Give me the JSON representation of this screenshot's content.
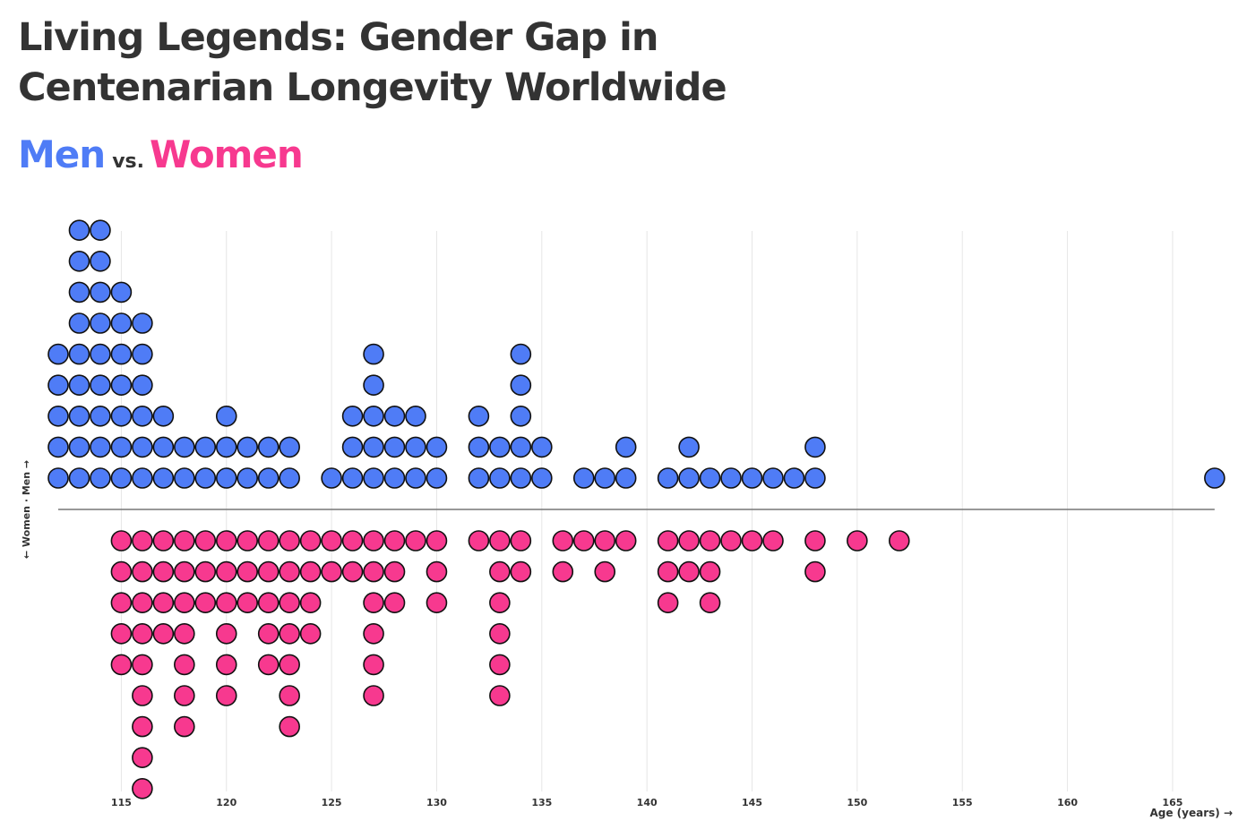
{
  "chart_data": {
    "type": "dot",
    "title": "Living Legends: Gender Gap in Centenarian Longevity Worldwide",
    "subtitle": {
      "left": "Men",
      "middle": "vs.",
      "right": "Women"
    },
    "xlabel": "Age (years) →",
    "ylabel": "← Women · Men →",
    "xlim": [
      112,
      167
    ],
    "xticks": [
      115,
      120,
      125,
      130,
      135,
      140,
      145,
      150,
      155,
      160,
      165
    ],
    "colors": {
      "men": "#4f7cf6",
      "women": "#f7398f",
      "outline": "#111111",
      "axis": "#777777",
      "grid": "#e6e6e6",
      "text": "#333333"
    },
    "series": [
      {
        "name": "Men",
        "direction": "up",
        "points": [
          {
            "age": 112,
            "count": 5
          },
          {
            "age": 113,
            "count": 9
          },
          {
            "age": 114,
            "count": 9
          },
          {
            "age": 115,
            "count": 7
          },
          {
            "age": 116,
            "count": 6
          },
          {
            "age": 117,
            "count": 3
          },
          {
            "age": 118,
            "count": 2
          },
          {
            "age": 119,
            "count": 2
          },
          {
            "age": 120,
            "count": 3
          },
          {
            "age": 121,
            "count": 2
          },
          {
            "age": 122,
            "count": 2
          },
          {
            "age": 123,
            "count": 2
          },
          {
            "age": 125,
            "count": 1
          },
          {
            "age": 126,
            "count": 3
          },
          {
            "age": 127,
            "count": 5
          },
          {
            "age": 128,
            "count": 3
          },
          {
            "age": 129,
            "count": 3
          },
          {
            "age": 130,
            "count": 2
          },
          {
            "age": 132,
            "count": 3
          },
          {
            "age": 133,
            "count": 2
          },
          {
            "age": 134,
            "count": 5
          },
          {
            "age": 135,
            "count": 2
          },
          {
            "age": 137,
            "count": 1
          },
          {
            "age": 138,
            "count": 1
          },
          {
            "age": 139,
            "count": 2
          },
          {
            "age": 141,
            "count": 1
          },
          {
            "age": 142,
            "count": 2
          },
          {
            "age": 143,
            "count": 1
          },
          {
            "age": 144,
            "count": 1
          },
          {
            "age": 145,
            "count": 1
          },
          {
            "age": 146,
            "count": 1
          },
          {
            "age": 147,
            "count": 1
          },
          {
            "age": 148,
            "count": 2
          },
          {
            "age": 167,
            "count": 1
          }
        ]
      },
      {
        "name": "Women",
        "direction": "down",
        "points": [
          {
            "age": 115,
            "count": 5
          },
          {
            "age": 116,
            "count": 9
          },
          {
            "age": 117,
            "count": 4
          },
          {
            "age": 118,
            "count": 7
          },
          {
            "age": 119,
            "count": 3
          },
          {
            "age": 120,
            "count": 6
          },
          {
            "age": 121,
            "count": 3
          },
          {
            "age": 122,
            "count": 5
          },
          {
            "age": 123,
            "count": 7
          },
          {
            "age": 124,
            "count": 4
          },
          {
            "age": 125,
            "count": 2
          },
          {
            "age": 126,
            "count": 2
          },
          {
            "age": 127,
            "count": 6
          },
          {
            "age": 128,
            "count": 3
          },
          {
            "age": 129,
            "count": 1
          },
          {
            "age": 130,
            "count": 3
          },
          {
            "age": 132,
            "count": 1
          },
          {
            "age": 133,
            "count": 6
          },
          {
            "age": 134,
            "count": 2
          },
          {
            "age": 136,
            "count": 2
          },
          {
            "age": 137,
            "count": 1
          },
          {
            "age": 138,
            "count": 2
          },
          {
            "age": 139,
            "count": 1
          },
          {
            "age": 141,
            "count": 3
          },
          {
            "age": 142,
            "count": 2
          },
          {
            "age": 143,
            "count": 3
          },
          {
            "age": 144,
            "count": 1
          },
          {
            "age": 145,
            "count": 1
          },
          {
            "age": 146,
            "count": 1
          },
          {
            "age": 148,
            "count": 2
          },
          {
            "age": 150,
            "count": 1
          },
          {
            "age": 152,
            "count": 1
          }
        ]
      }
    ]
  }
}
